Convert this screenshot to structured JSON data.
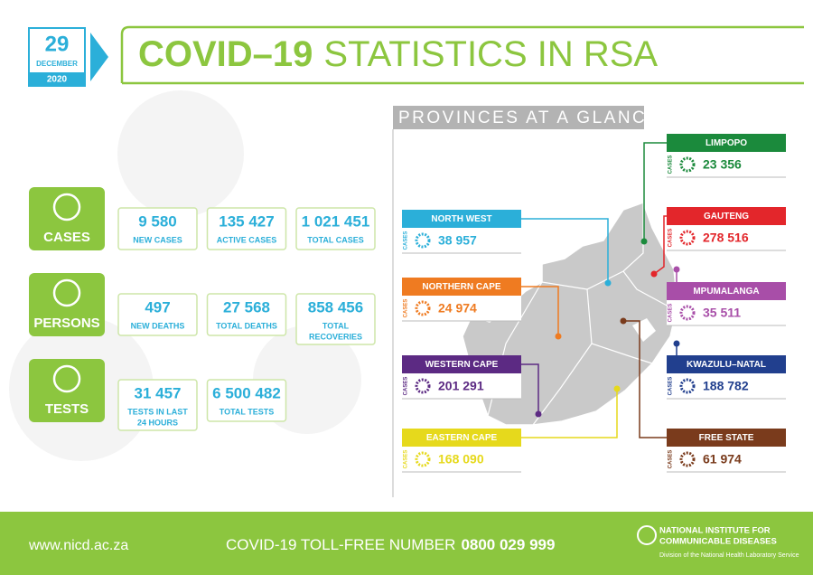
{
  "header": {
    "day": "29",
    "month": "DECEMBER",
    "year": "2020",
    "title_bold": "COVID–19",
    "title_rest": "STATISTICS IN RSA"
  },
  "sections": [
    {
      "label": "CASES",
      "stats": [
        {
          "value": "9 580",
          "label": [
            "NEW CASES"
          ]
        },
        {
          "value": "135 427",
          "label": [
            "ACTIVE CASES"
          ]
        },
        {
          "value": "1 021 451",
          "label": [
            "TOTAL CASES"
          ]
        }
      ]
    },
    {
      "label": "PERSONS",
      "stats": [
        {
          "value": "497",
          "label": [
            "NEW DEATHS"
          ]
        },
        {
          "value": "27 568",
          "label": [
            "TOTAL DEATHS"
          ]
        },
        {
          "value": "858 456",
          "label": [
            "TOTAL",
            "RECOVERIES"
          ]
        }
      ]
    },
    {
      "label": "TESTS",
      "stats": [
        {
          "value": "31 457",
          "label": [
            "TESTS IN LAST",
            "24 HOURS"
          ]
        },
        {
          "value": "6 500 482",
          "label": [
            "TOTAL TESTS"
          ]
        }
      ]
    }
  ],
  "provinces": {
    "title": "PROVINCES AT A GLANCE",
    "cases_label": "CASES",
    "items": [
      {
        "name": "LIMPOPO",
        "value": "23 356",
        "color": "#1b8a3c"
      },
      {
        "name": "GAUTENG",
        "value": "278 516",
        "color": "#e3262b"
      },
      {
        "name": "MPUMALANGA",
        "value": "35 511",
        "color": "#a84ea8"
      },
      {
        "name": "KWAZULU–NATAL",
        "value": "188 782",
        "color": "#213f8e"
      },
      {
        "name": "FREE STATE",
        "value": "61 974",
        "color": "#7a3b1c"
      },
      {
        "name": "NORTH WEST",
        "value": "38 957",
        "color": "#2bafd9"
      },
      {
        "name": "NORTHERN CAPE",
        "value": "24 974",
        "color": "#ef7b21"
      },
      {
        "name": "WESTERN CAPE",
        "value": "201 291",
        "color": "#5c2a83"
      },
      {
        "name": "EASTERN CAPE",
        "value": "168 090",
        "color": "#e6d91c"
      }
    ]
  },
  "footer": {
    "url": "www.nicd.ac.za",
    "tollfree_label": "COVID-19 TOLL-FREE NUMBER",
    "tollfree_number": "0800 029 999",
    "org_line1": "NATIONAL INSTITUTE FOR",
    "org_line2": "COMMUNICABLE DISEASES",
    "org_sub": "Division of the National Health Laboratory Service"
  }
}
